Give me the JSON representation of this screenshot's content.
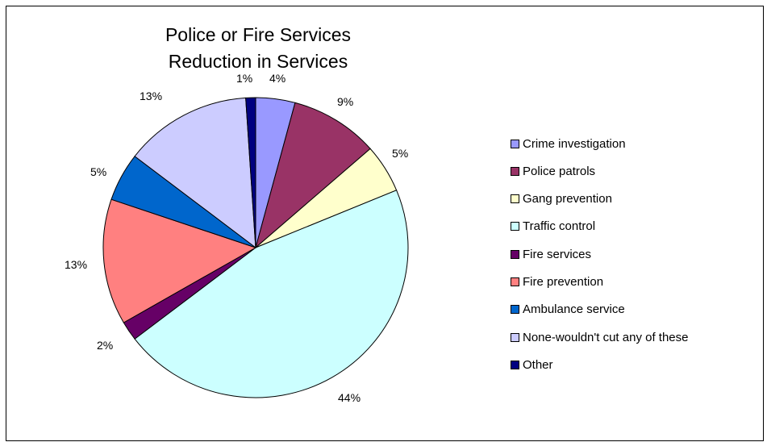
{
  "chart_data": {
    "type": "pie",
    "title": "Police or Fire Services Reduction in Services",
    "title_lines": [
      "Police or Fire Services",
      "Reduction in Services"
    ],
    "legend_position": "right",
    "start_angle_deg": -90,
    "direction": "clockwise",
    "slices": [
      {
        "name": "Crime investigation",
        "value": 4,
        "label": "4%",
        "color": "#9999FF"
      },
      {
        "name": "Police patrols",
        "value": 9,
        "label": "9%",
        "color": "#993366"
      },
      {
        "name": "Gang prevention",
        "value": 5,
        "label": "5%",
        "color": "#FFFFCC"
      },
      {
        "name": "Traffic control",
        "value": 44,
        "label": "44%",
        "color": "#CCFFFF"
      },
      {
        "name": "Fire services",
        "value": 2,
        "label": "2%",
        "color": "#660066"
      },
      {
        "name": "Fire prevention",
        "value": 13,
        "label": "13%",
        "color": "#FF8080"
      },
      {
        "name": "Ambulance service",
        "value": 5,
        "label": "5%",
        "color": "#0066CC"
      },
      {
        "name": "None-wouldn't cut any of these",
        "value": 13,
        "label": "13%",
        "color": "#CCCCFF"
      },
      {
        "name": "Other",
        "value": 1,
        "label": "1%",
        "color": "#000080"
      }
    ]
  }
}
